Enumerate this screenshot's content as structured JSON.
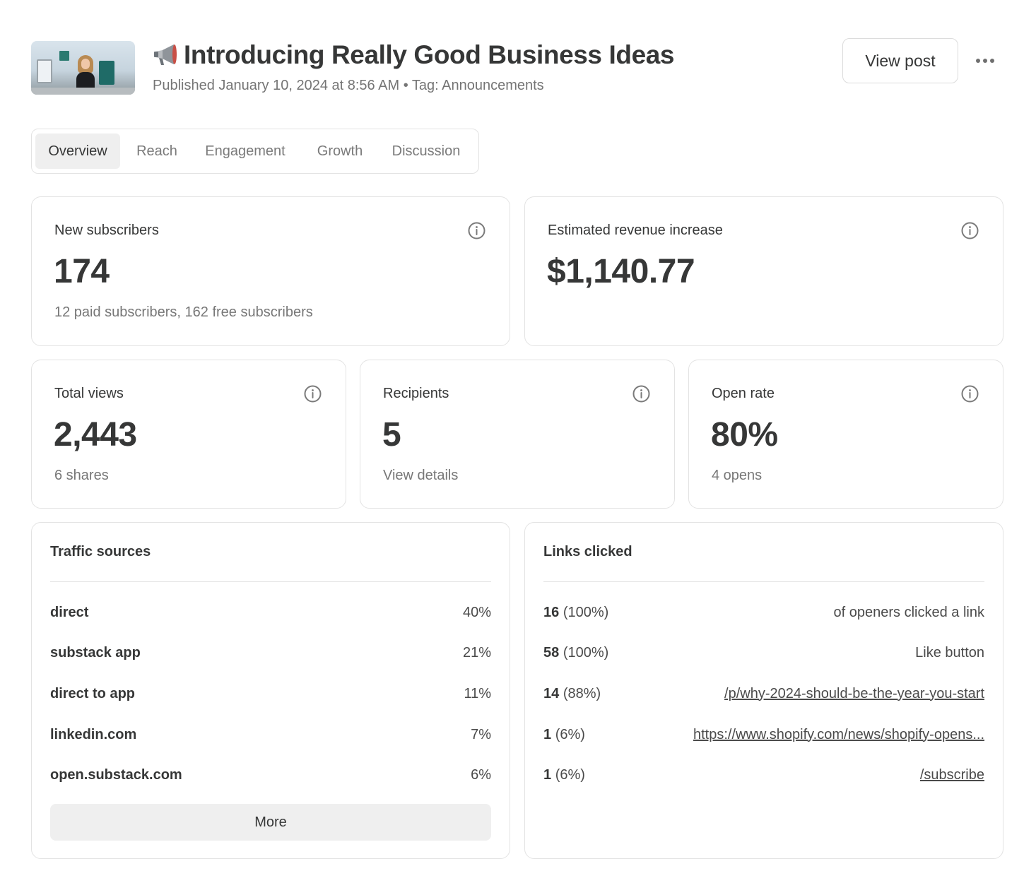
{
  "header": {
    "title": "Introducing Really Good Business Ideas",
    "meta": "Published January 10, 2024 at 8:56 AM • Tag: Announcements",
    "view_post_label": "View post"
  },
  "tabs": [
    {
      "label": "Overview",
      "active": true
    },
    {
      "label": "Reach",
      "active": false
    },
    {
      "label": "Engagement",
      "active": false
    },
    {
      "label": "Growth",
      "active": false
    },
    {
      "label": "Discussion",
      "active": false
    }
  ],
  "stats": {
    "new_subscribers": {
      "label": "New subscribers",
      "value": "174",
      "sub": "12 paid subscribers, 162 free subscribers"
    },
    "revenue": {
      "label": "Estimated revenue increase",
      "value": "$1,140.77"
    },
    "total_views": {
      "label": "Total views",
      "value": "2,443",
      "sub": "6 shares"
    },
    "recipients": {
      "label": "Recipients",
      "value": "5",
      "sub": "View details"
    },
    "open_rate": {
      "label": "Open rate",
      "value": "80%",
      "sub": "4 opens"
    }
  },
  "traffic": {
    "title": "Traffic sources",
    "rows": [
      {
        "source": "direct",
        "pct": "40%"
      },
      {
        "source": "substack app",
        "pct": "21%"
      },
      {
        "source": "direct to app",
        "pct": "11%"
      },
      {
        "source": "linkedin.com",
        "pct": "7%"
      },
      {
        "source": "open.substack.com",
        "pct": "6%"
      }
    ],
    "more_label": "More"
  },
  "links": {
    "title": "Links clicked",
    "rows": [
      {
        "count": "16",
        "pct": "(100%)",
        "target": "of openers clicked a link"
      },
      {
        "count": "58",
        "pct": "(100%)",
        "target": "Like button"
      },
      {
        "count": "14",
        "pct": "(88%)",
        "target": "/p/why-2024-should-be-the-year-you-start"
      },
      {
        "count": "1",
        "pct": "(6%)",
        "target": "https://www.shopify.com/news/shopify-opens..."
      },
      {
        "count": "1",
        "pct": "(6%)",
        "target": "/subscribe"
      }
    ]
  },
  "icons": {
    "megaphone": "megaphone-icon",
    "info": "info-icon",
    "more": "more-horizontal-icon"
  }
}
